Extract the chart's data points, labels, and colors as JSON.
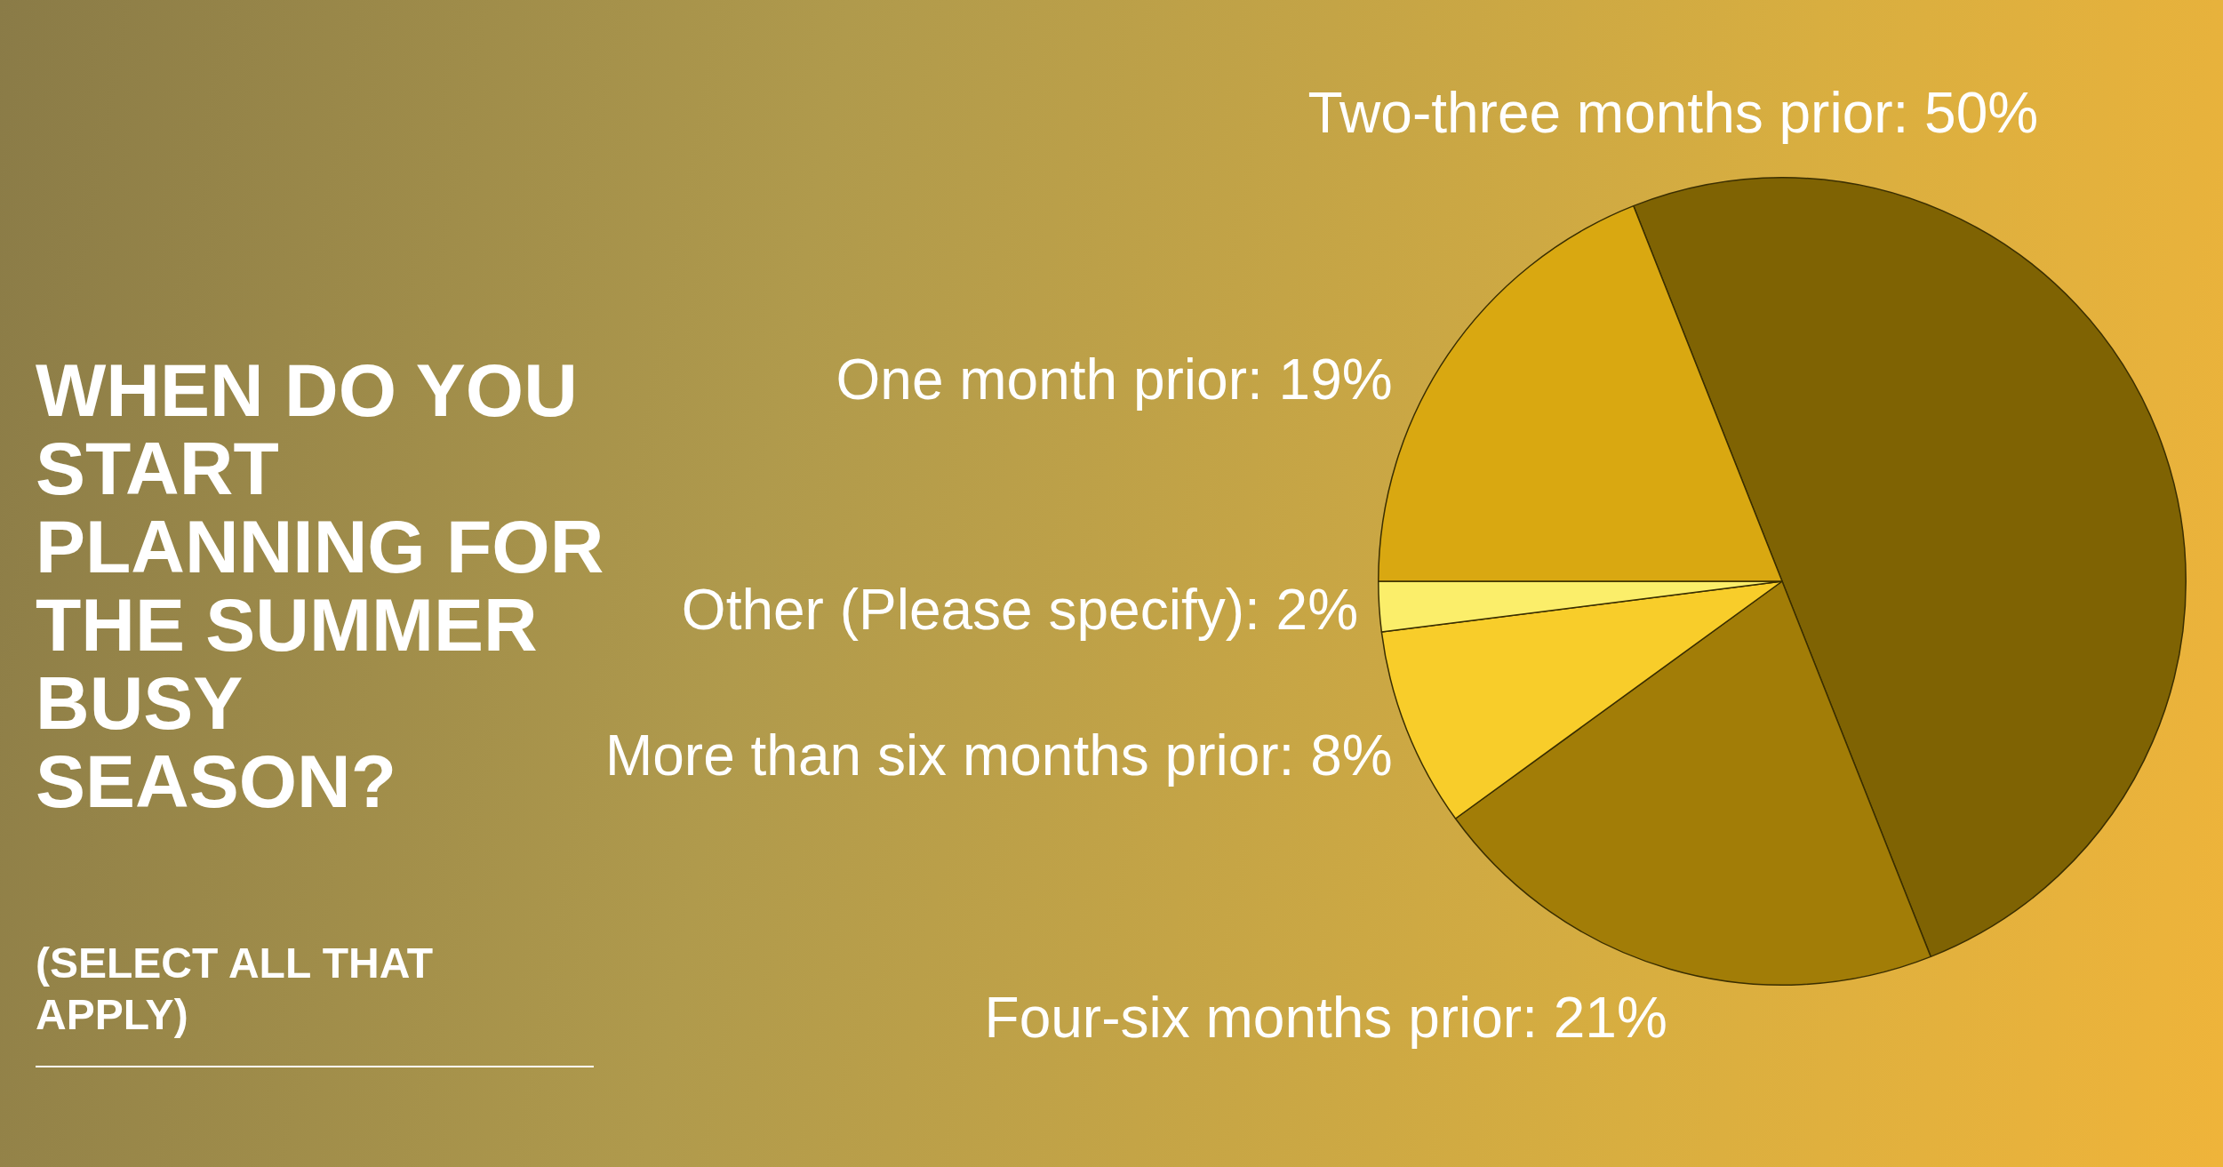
{
  "chart_data": {
    "type": "pie",
    "title": "WHEN DO YOU START PLANNING FOR THE SUMMER BUSY SEASON?",
    "subtitle": "(SELECT ALL THAT APPLY)",
    "categories": [
      "Two-three months prior",
      "Four-six months prior",
      "More than six months prior",
      "Other (Please specify)",
      "One month prior"
    ],
    "values": [
      50,
      21,
      8,
      2,
      19
    ],
    "value_labels": [
      "50%",
      "21%",
      "8%",
      "2%",
      "19%"
    ],
    "colors": [
      "#7f6303",
      "#a27d07",
      "#f8cd2a",
      "#fbee6a",
      "#d9a811"
    ],
    "legend": false
  }
}
